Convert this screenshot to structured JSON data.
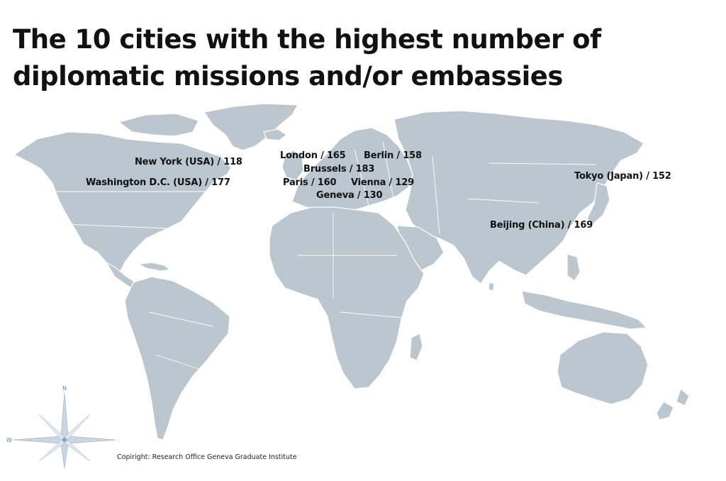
{
  "title": "The 10 cities with the highest number of diplomatic missions and/or embassies",
  "cities": [
    {
      "name": "New York (USA)",
      "count": 118,
      "text": "New York (USA) / 118"
    },
    {
      "name": "Washington D.C. (USA)",
      "count": 177,
      "text": "Washington D.C. (USA) / 177"
    },
    {
      "name": "London",
      "count": 165,
      "text": "London / 165"
    },
    {
      "name": "Berlin",
      "count": 158,
      "text": "Berlin / 158"
    },
    {
      "name": "Brussels",
      "count": 183,
      "text": "Brussels / 183"
    },
    {
      "name": "Paris",
      "count": 160,
      "text": "Paris / 160"
    },
    {
      "name": "Vienna",
      "count": 129,
      "text": "Vienna / 129"
    },
    {
      "name": "Geneva",
      "count": 130,
      "text": "Geneva / 130"
    },
    {
      "name": "Tokyo (Japan)",
      "count": 152,
      "text": "Tokyo (Japan) / 152"
    },
    {
      "name": "Beijing (China)",
      "count": 169,
      "text": "Beijing (China) / 169"
    }
  ],
  "compass": {
    "north": "N",
    "west": "W",
    "east": "E"
  },
  "copyright": "Copiright: Research Office Geneva Graduate Institute",
  "colors": {
    "land": "#bcc6cf",
    "text": "#111111",
    "compass_text": "#3a8fd0"
  }
}
